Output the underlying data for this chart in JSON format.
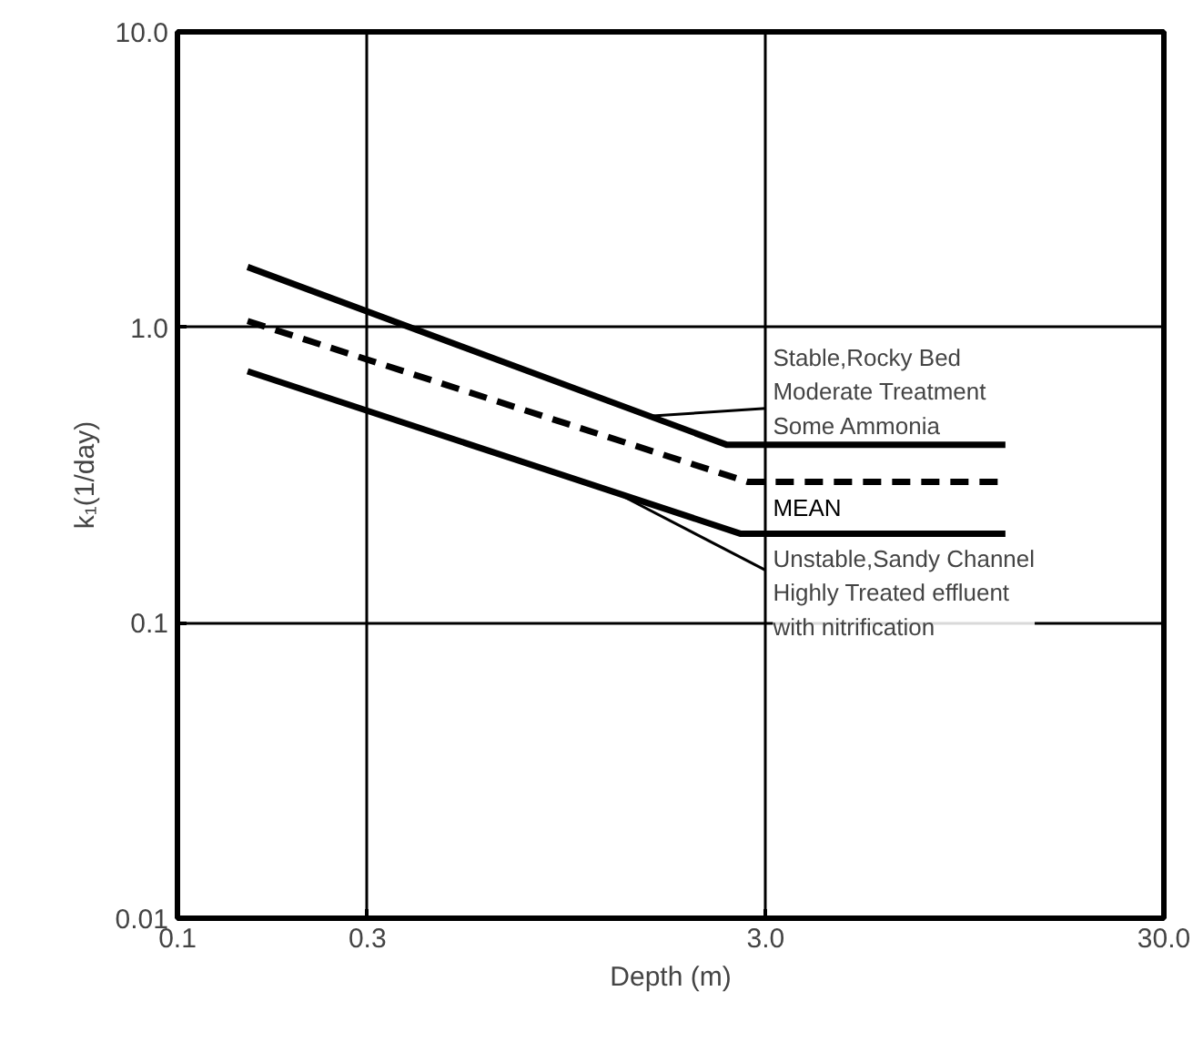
{
  "chart_data": {
    "type": "line",
    "xlabel": "Depth (m)",
    "ylabel": "k₁(1/day)",
    "log": "xy",
    "xlim": [
      0.1,
      30
    ],
    "ylim": [
      0.01,
      10
    ],
    "xticks": [
      0.1,
      0.3,
      {
        "value": 3,
        "label": "3.0"
      },
      {
        "value": 30,
        "label": "30.0"
      }
    ],
    "yticks": [
      0.01,
      0.1,
      {
        "value": 1,
        "label": "1.0"
      },
      {
        "value": 10,
        "label": "10.0"
      }
    ],
    "grid": true,
    "series": [
      {
        "color": "#000000",
        "x": [
          0.15,
          2.4,
          12
        ],
        "values": [
          1.6,
          0.4,
          0.4
        ],
        "line_style": "solid"
      },
      {
        "name": "MEAN",
        "color": "#000000",
        "x": [
          0.15,
          2.7,
          12
        ],
        "values": [
          1.05,
          0.3,
          0.3
        ],
        "line_style": "dashed"
      },
      {
        "color": "#000000",
        "x": [
          0.15,
          2.6,
          12
        ],
        "values": [
          0.71,
          0.2,
          0.2
        ],
        "line_style": "solid"
      }
    ],
    "annotations": [
      {
        "text": "Stable,Rocky Bed\nModerate Treatment\nSome Ammonia",
        "x": 1.5,
        "y": 0.5
      },
      {
        "text": "Unstable,Sandy Channel\nHighly Treated effluent\nwith nitrification",
        "x": 1.3,
        "y": 0.27
      }
    ]
  }
}
